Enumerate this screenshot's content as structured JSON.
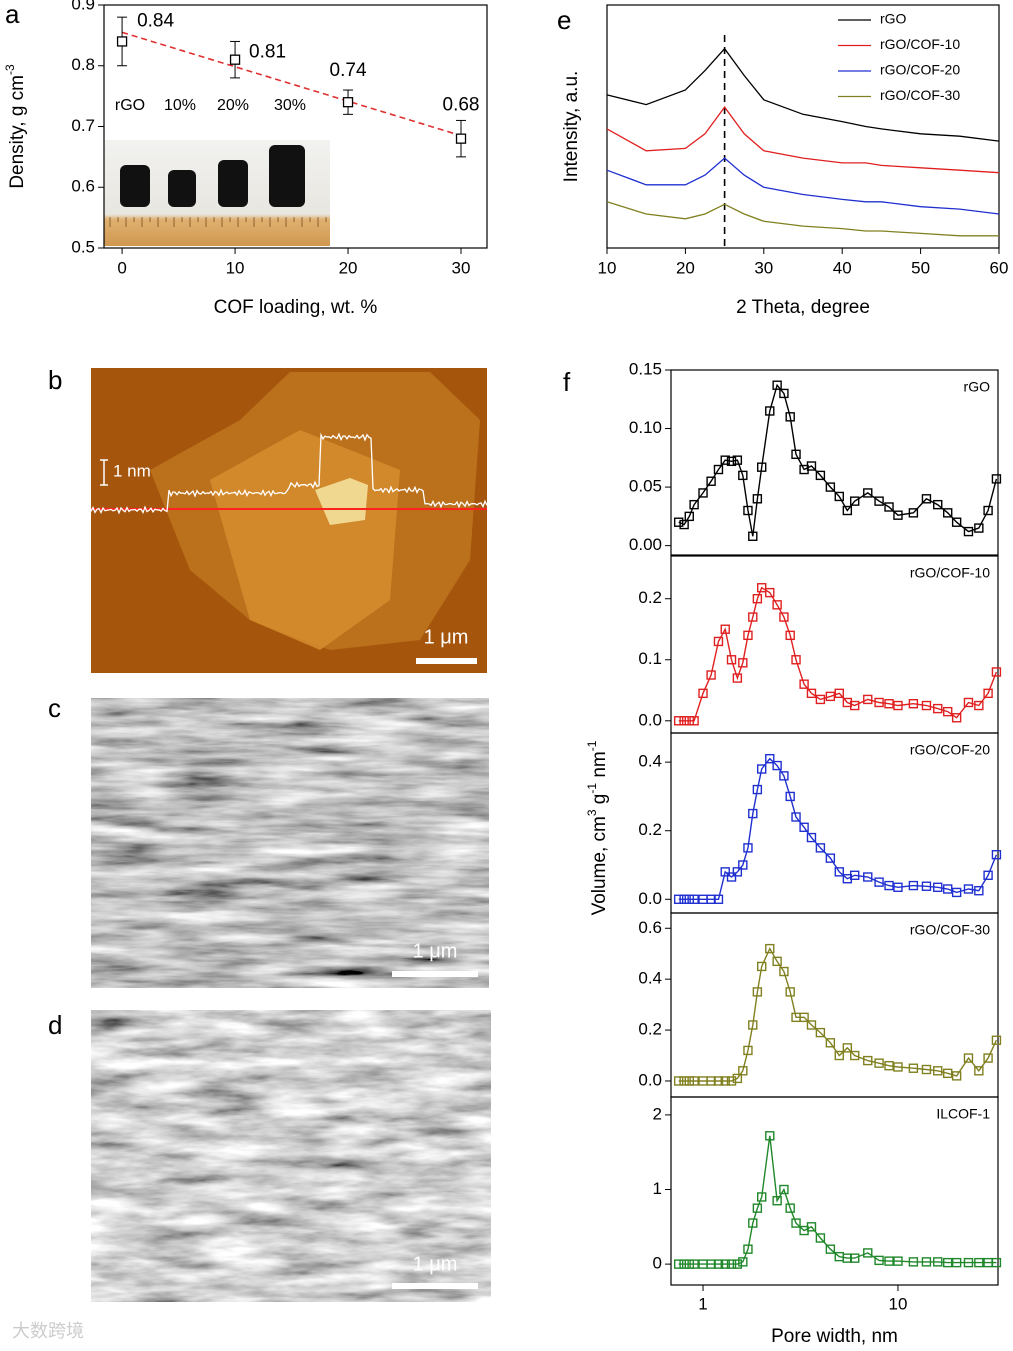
{
  "chart_data": [
    {
      "type": "scatter",
      "label": "a",
      "xlabel": "COF loading, wt. %",
      "ylabel": [
        "Density, g cm",
        "-3"
      ],
      "x": [
        0,
        10,
        20,
        30
      ],
      "values": [
        0.84,
        0.81,
        0.74,
        0.68
      ],
      "errors": [
        0.04,
        0.03,
        0.02,
        0.03
      ],
      "color": "#000000",
      "fit": {
        "x": [
          0,
          30
        ],
        "values": [
          0.855,
          0.685
        ],
        "color": "#e03030"
      },
      "xlim": [
        -1.6,
        32.3
      ],
      "xticks": [
        0,
        10,
        20,
        30
      ],
      "ylim": [
        0.5,
        0.9
      ],
      "yticks": [
        0.5,
        0.6,
        0.7,
        0.8,
        0.9
      ],
      "annotations": [
        "rGO",
        "10%",
        "20%",
        "30%"
      ]
    },
    {
      "type": "line",
      "label": "e",
      "xlabel": "2 Theta, degree",
      "ylabel": [
        "Intensity, a.u."
      ],
      "x": [
        10,
        15,
        20,
        22.5,
        25,
        27.5,
        30,
        35,
        40,
        43,
        45,
        50,
        55,
        60
      ],
      "series": [
        {
          "name": "rGO",
          "color": "#000000",
          "values": [
            6.3,
            5.9,
            6.5,
            7.3,
            8.2,
            7.1,
            6.1,
            5.5,
            5.2,
            5.0,
            4.9,
            4.7,
            4.6,
            4.4
          ]
        },
        {
          "name": "rGO/COF-10",
          "color": "#e02020",
          "values": [
            4.9,
            4.0,
            4.1,
            4.7,
            5.8,
            4.7,
            4.0,
            3.7,
            3.5,
            3.5,
            3.4,
            3.3,
            3.2,
            3.1
          ]
        },
        {
          "name": "rGO/COF-20",
          "color": "#2030d0",
          "values": [
            3.2,
            2.6,
            2.6,
            3.0,
            3.7,
            3.0,
            2.5,
            2.2,
            2.0,
            1.9,
            1.9,
            1.7,
            1.6,
            1.4
          ]
        },
        {
          "name": "rGO/COF-30",
          "color": "#808020",
          "values": [
            1.9,
            1.4,
            1.2,
            1.4,
            1.8,
            1.4,
            1.1,
            0.9,
            0.8,
            0.7,
            0.7,
            0.6,
            0.5,
            0.5
          ]
        }
      ],
      "reference_x": 25,
      "xlim": [
        10,
        60
      ],
      "xticks": [
        10,
        20,
        30,
        40,
        50,
        60
      ],
      "ylim": [
        0,
        10
      ],
      "legend": "upper right"
    },
    {
      "type": "line-stack",
      "label": "f",
      "xlabel": "Pore width, nm",
      "ylabel": [
        "Volume, cm",
        "3",
        " g",
        "-1",
        " nm",
        "-1"
      ],
      "xlog": true,
      "xlim": [
        0.685,
        32.6
      ],
      "xticks": [
        1,
        10
      ],
      "x": [
        0.75,
        0.8,
        0.85,
        0.9,
        1.0,
        1.1,
        1.2,
        1.3,
        1.4,
        1.5,
        1.6,
        1.7,
        1.8,
        1.9,
        2.0,
        2.2,
        2.4,
        2.6,
        2.8,
        3.0,
        3.3,
        3.6,
        4.0,
        4.5,
        5.0,
        5.5,
        6.0,
        7.0,
        8.0,
        9.0,
        10,
        12,
        14,
        16,
        18,
        20,
        23,
        26,
        29,
        32
      ],
      "panels": [
        {
          "name": "rGO",
          "color": "#000000",
          "ylim": [
            -0.008,
            0.15
          ],
          "yticks": [
            {
              "value": 0,
              "label": "0.00"
            },
            {
              "value": 0.05,
              "label": "0.05"
            },
            {
              "value": 0.1,
              "label": "0.10"
            },
            {
              "value": 0.15,
              "label": "0.15"
            }
          ],
          "values": [
            0.02,
            0.018,
            0.025,
            0.035,
            0.045,
            0.055,
            0.065,
            0.073,
            0.072,
            0.073,
            0.06,
            0.03,
            0.008,
            0.04,
            0.067,
            0.115,
            0.137,
            0.13,
            0.11,
            0.078,
            0.065,
            0.068,
            0.06,
            0.05,
            0.042,
            0.03,
            0.038,
            0.045,
            0.038,
            0.033,
            0.026,
            0.028,
            0.04,
            0.035,
            0.028,
            0.02,
            0.012,
            0.015,
            0.03,
            0.057
          ]
        },
        {
          "name": "rGO/COF-10",
          "color": "#e02020",
          "ylim": [
            -0.02,
            0.27
          ],
          "yticks": [
            {
              "value": 0,
              "label": "0.0"
            },
            0.1,
            0.2
          ],
          "values": [
            0,
            0,
            0,
            0,
            0.045,
            0.075,
            0.13,
            0.15,
            0.1,
            0.07,
            0.095,
            0.14,
            0.17,
            0.2,
            0.218,
            0.21,
            0.19,
            0.17,
            0.14,
            0.1,
            0.06,
            0.045,
            0.035,
            0.04,
            0.045,
            0.03,
            0.025,
            0.035,
            0.03,
            0.028,
            0.025,
            0.028,
            0.025,
            0.02,
            0.015,
            0.005,
            0.03,
            0.025,
            0.045,
            0.08
          ]
        },
        {
          "name": "rGO/COF-20",
          "color": "#2030d0",
          "ylim": [
            -0.04,
            0.485
          ],
          "yticks": [
            {
              "value": 0,
              "label": "0.0"
            },
            0.2,
            0.4
          ],
          "values": [
            0,
            0,
            0,
            0,
            0,
            0,
            0,
            0.08,
            0.065,
            0.08,
            0.1,
            0.15,
            0.25,
            0.32,
            0.38,
            0.41,
            0.39,
            0.36,
            0.3,
            0.24,
            0.21,
            0.18,
            0.15,
            0.12,
            0.08,
            0.06,
            0.07,
            0.065,
            0.05,
            0.04,
            0.035,
            0.04,
            0.038,
            0.035,
            0.03,
            0.02,
            0.03,
            0.025,
            0.07,
            0.13
          ]
        },
        {
          "name": "rGO/COF-30",
          "color": "#808020",
          "ylim": [
            -0.063,
            0.66
          ],
          "yticks": [
            {
              "value": 0,
              "label": "0.0"
            },
            0.2,
            0.4,
            0.6
          ],
          "values": [
            0,
            0,
            0,
            0,
            0,
            0,
            0,
            0,
            0,
            0.01,
            0.04,
            0.12,
            0.22,
            0.35,
            0.45,
            0.52,
            0.47,
            0.43,
            0.35,
            0.25,
            0.25,
            0.22,
            0.19,
            0.15,
            0.1,
            0.13,
            0.1,
            0.08,
            0.07,
            0.06,
            0.055,
            0.05,
            0.045,
            0.04,
            0.03,
            0.02,
            0.09,
            0.04,
            0.09,
            0.16
          ]
        },
        {
          "name": "ILCOF-1",
          "color": "#20882a",
          "ylim": [
            -0.28,
            2.24
          ],
          "yticks": [
            0,
            1,
            2
          ],
          "values": [
            0,
            0,
            0,
            0,
            0,
            0,
            0,
            0,
            0,
            0,
            0.03,
            0.2,
            0.55,
            0.75,
            0.9,
            1.72,
            0.85,
            1.0,
            0.75,
            0.55,
            0.45,
            0.5,
            0.35,
            0.2,
            0.1,
            0.08,
            0.08,
            0.15,
            0.05,
            0.04,
            0.04,
            0.03,
            0.03,
            0.03,
            0.02,
            0.02,
            0.02,
            0.02,
            0.02,
            0.02
          ]
        }
      ]
    }
  ],
  "images": [
    {
      "label": "b",
      "scale_bar": "1 μm",
      "height_bar": "1 nm"
    },
    {
      "label": "c",
      "scale_bar": "1 μm"
    },
    {
      "label": "d",
      "scale_bar": "1 μm"
    }
  ],
  "watermark": "大数跨境"
}
